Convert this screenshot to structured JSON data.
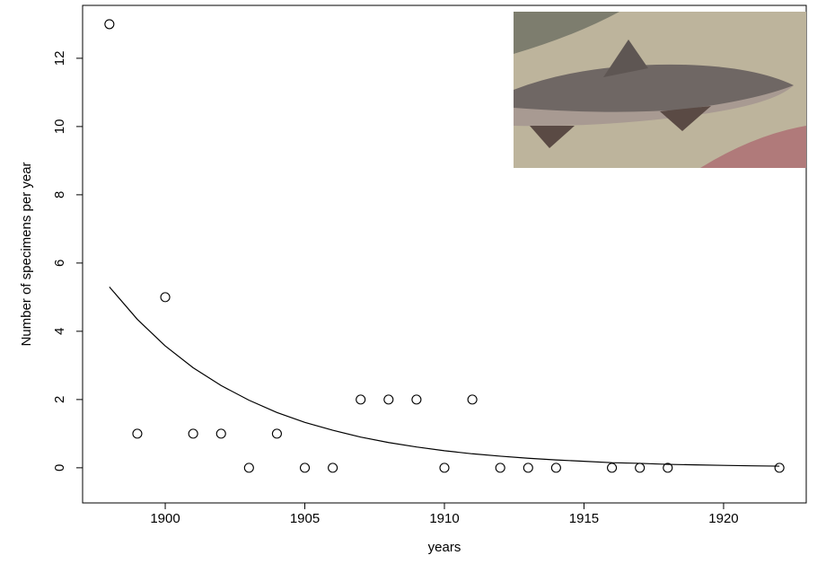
{
  "chart_data": {
    "type": "scatter",
    "xlabel": "years",
    "ylabel": "Number of specimens per year",
    "x": [
      1898,
      1899,
      1900,
      1901,
      1902,
      1903,
      1904,
      1905,
      1906,
      1907,
      1908,
      1909,
      1910,
      1911,
      1912,
      1913,
      1914,
      1916,
      1917,
      1918,
      1922
    ],
    "values": [
      13,
      1,
      5,
      1,
      1,
      0,
      1,
      0,
      0,
      2,
      2,
      2,
      0,
      2,
      0,
      0,
      0,
      0,
      0,
      0,
      0
    ],
    "curve": {
      "x": [
        1898,
        1899,
        1900,
        1901,
        1902,
        1903,
        1904,
        1905,
        1906,
        1907,
        1908,
        1909,
        1910,
        1911,
        1912,
        1913,
        1914,
        1915,
        1916,
        1917,
        1918,
        1919,
        1920,
        1921,
        1922
      ],
      "values": [
        5.3,
        4.35,
        3.57,
        2.93,
        2.41,
        1.98,
        1.62,
        1.33,
        1.1,
        0.9,
        0.74,
        0.61,
        0.5,
        0.41,
        0.34,
        0.28,
        0.23,
        0.19,
        0.15,
        0.13,
        0.1,
        0.085,
        0.07,
        0.057,
        0.047
      ]
    },
    "color": "#000000",
    "xlim": [
      1897.04,
      1922.96
    ],
    "ylim": [
      -1.03,
      13.55
    ],
    "xticks": [
      1900,
      1905,
      1910,
      1915,
      1920
    ],
    "yticks": [
      0,
      2,
      4,
      6,
      8,
      10,
      12
    ]
  }
}
